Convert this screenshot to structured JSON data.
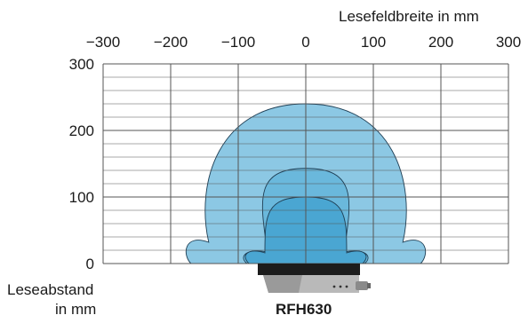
{
  "x_axis": {
    "title": "Lesefeldbreite in mm",
    "ticks": [
      "−300",
      "−200",
      "−100",
      "0",
      "100",
      "200",
      "300"
    ],
    "tick_values": [
      -300,
      -200,
      -100,
      0,
      100,
      200,
      300
    ]
  },
  "y_axis": {
    "title_line1": "Leseabstand",
    "title_line2": "in mm",
    "ticks": [
      "300",
      "200",
      "100",
      "0"
    ],
    "tick_values": [
      300,
      200,
      100,
      0
    ]
  },
  "device": {
    "label": "RFH630"
  },
  "fields": [
    {
      "name": "outer",
      "max_distance": 240,
      "half_width": 170,
      "color": "#8cc8e4"
    },
    {
      "name": "middle",
      "max_distance": 143,
      "half_width": 120,
      "color": "#6ab8dc"
    },
    {
      "name": "inner",
      "max_distance": 100,
      "half_width": 100,
      "color": "#4aa6d2"
    }
  ],
  "colors": {
    "grid": "#555555",
    "field_stroke": "#1f3f55"
  }
}
